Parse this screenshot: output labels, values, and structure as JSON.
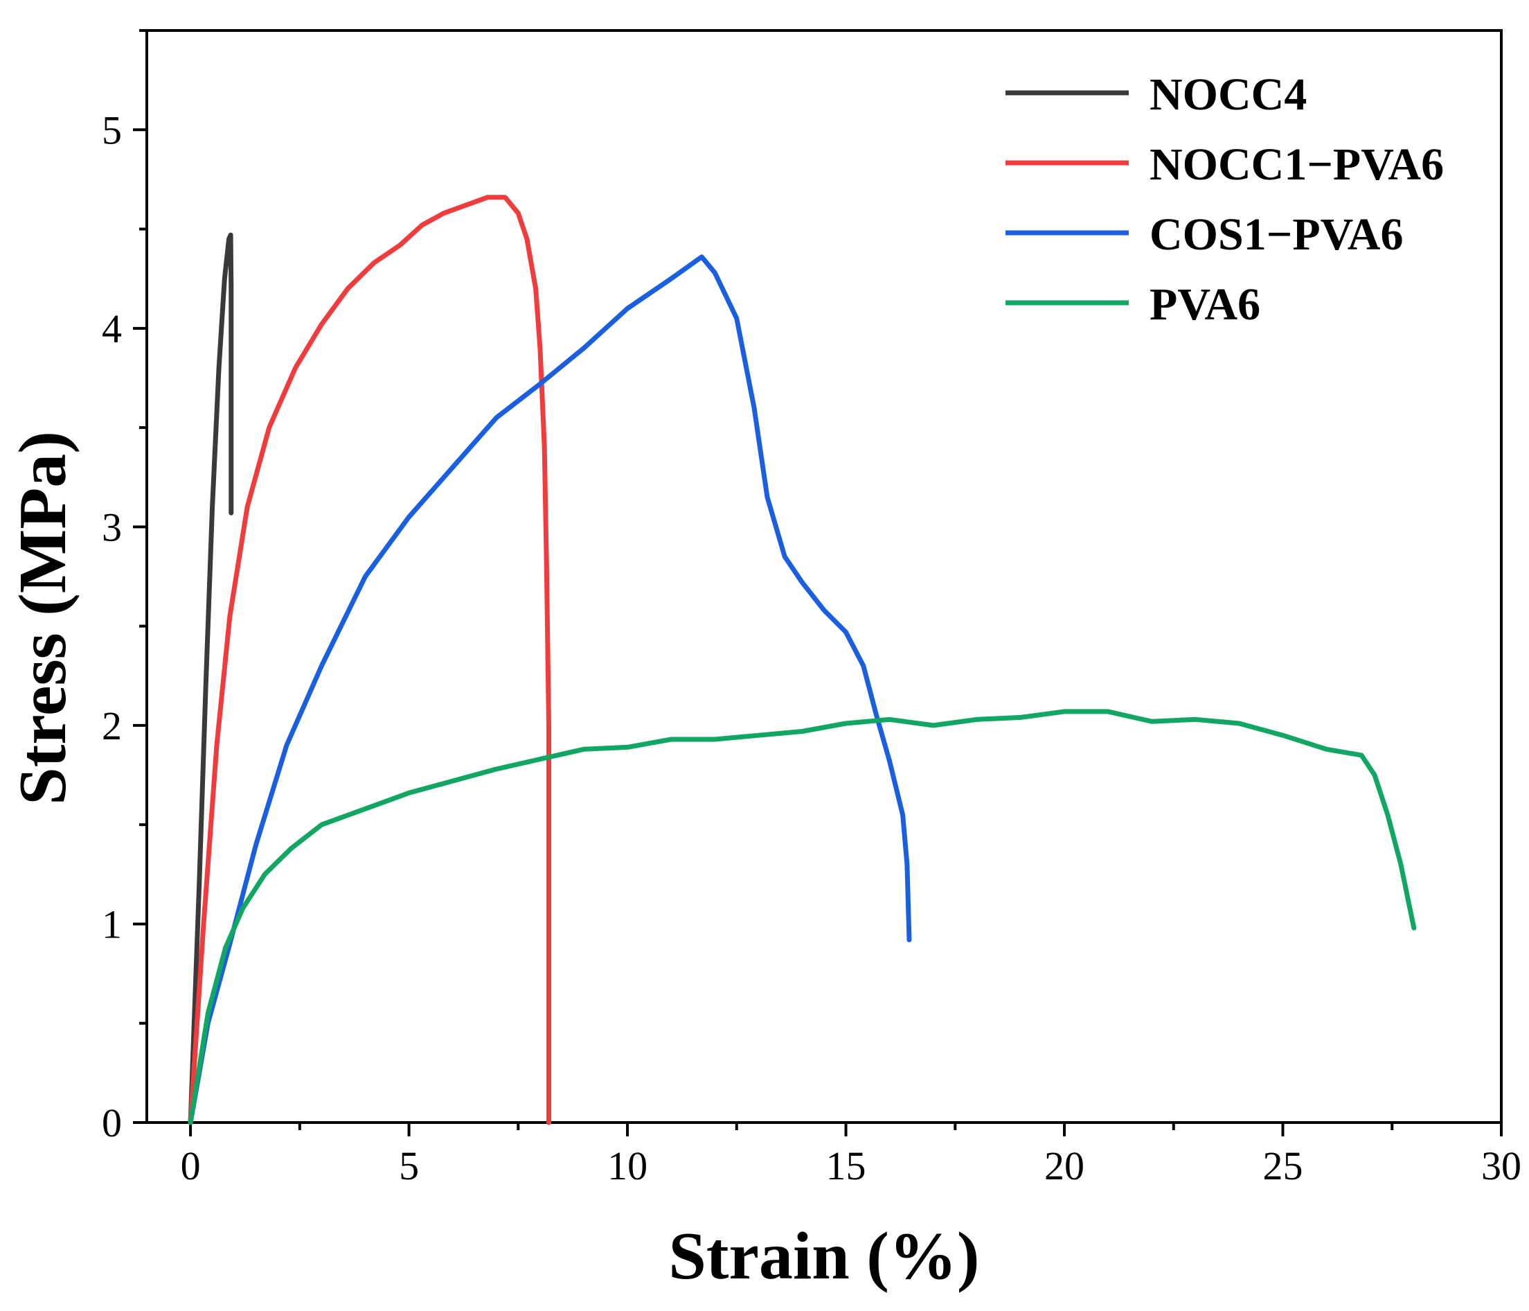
{
  "chart_data": {
    "type": "line",
    "xlabel": "Strain (%)",
    "ylabel": "Stress (MPa)",
    "xlim": [
      -1,
      30
    ],
    "ylim": [
      0,
      5.5
    ],
    "xticks": [
      0,
      5,
      10,
      15,
      20,
      25,
      30
    ],
    "yticks": [
      0,
      1,
      2,
      3,
      4,
      5
    ],
    "legend_position": "top-right",
    "grid": false,
    "series": [
      {
        "name": "NOCC4",
        "color": "#3a3a3a",
        "points": [
          [
            0,
            0
          ],
          [
            0.2,
            1.2
          ],
          [
            0.35,
            2.2
          ],
          [
            0.5,
            3.1
          ],
          [
            0.65,
            3.8
          ],
          [
            0.78,
            4.25
          ],
          [
            0.88,
            4.45
          ],
          [
            0.92,
            4.47
          ],
          [
            0.93,
            4.2
          ],
          [
            0.93,
            3.6
          ],
          [
            0.93,
            3.07
          ]
        ]
      },
      {
        "name": "NOCC1−PVA6",
        "color": "#f03c3c",
        "points": [
          [
            0,
            0
          ],
          [
            0.3,
            1.0
          ],
          [
            0.6,
            1.9
          ],
          [
            0.9,
            2.55
          ],
          [
            1.3,
            3.1
          ],
          [
            1.8,
            3.5
          ],
          [
            2.4,
            3.8
          ],
          [
            3.0,
            4.02
          ],
          [
            3.6,
            4.2
          ],
          [
            4.2,
            4.33
          ],
          [
            4.8,
            4.42
          ],
          [
            5.3,
            4.52
          ],
          [
            5.8,
            4.58
          ],
          [
            6.3,
            4.62
          ],
          [
            6.8,
            4.66
          ],
          [
            7.2,
            4.66
          ],
          [
            7.5,
            4.58
          ],
          [
            7.7,
            4.45
          ],
          [
            7.9,
            4.2
          ],
          [
            8.0,
            3.9
          ],
          [
            8.1,
            3.4
          ],
          [
            8.15,
            2.8
          ],
          [
            8.2,
            2.0
          ],
          [
            8.2,
            1.0
          ],
          [
            8.2,
            0
          ]
        ]
      },
      {
        "name": "COS1−PVA6",
        "color": "#1a5fe0",
        "points": [
          [
            0,
            0
          ],
          [
            0.4,
            0.5
          ],
          [
            0.9,
            0.9
          ],
          [
            1.5,
            1.4
          ],
          [
            2.2,
            1.9
          ],
          [
            3.0,
            2.3
          ],
          [
            4.0,
            2.75
          ],
          [
            5.0,
            3.05
          ],
          [
            6.0,
            3.3
          ],
          [
            7.0,
            3.55
          ],
          [
            8.0,
            3.72
          ],
          [
            9.0,
            3.9
          ],
          [
            10.0,
            4.1
          ],
          [
            11.0,
            4.25
          ],
          [
            11.7,
            4.36
          ],
          [
            12.0,
            4.28
          ],
          [
            12.5,
            4.05
          ],
          [
            12.9,
            3.6
          ],
          [
            13.2,
            3.15
          ],
          [
            13.6,
            2.85
          ],
          [
            14.0,
            2.72
          ],
          [
            14.5,
            2.58
          ],
          [
            15.0,
            2.47
          ],
          [
            15.4,
            2.3
          ],
          [
            15.7,
            2.05
          ],
          [
            16.0,
            1.82
          ],
          [
            16.3,
            1.55
          ],
          [
            16.4,
            1.3
          ],
          [
            16.45,
            0.92
          ]
        ]
      },
      {
        "name": "PVA6",
        "color": "#12a665",
        "points": [
          [
            0,
            0
          ],
          [
            0.4,
            0.55
          ],
          [
            0.8,
            0.88
          ],
          [
            1.2,
            1.08
          ],
          [
            1.7,
            1.25
          ],
          [
            2.3,
            1.38
          ],
          [
            3.0,
            1.5
          ],
          [
            4.0,
            1.58
          ],
          [
            5.0,
            1.66
          ],
          [
            6.0,
            1.72
          ],
          [
            7.0,
            1.78
          ],
          [
            8.0,
            1.83
          ],
          [
            9.0,
            1.88
          ],
          [
            10.0,
            1.89
          ],
          [
            11.0,
            1.93
          ],
          [
            12.0,
            1.93
          ],
          [
            13.0,
            1.95
          ],
          [
            14.0,
            1.97
          ],
          [
            15.0,
            2.01
          ],
          [
            16.0,
            2.03
          ],
          [
            17.0,
            2.0
          ],
          [
            18.0,
            2.03
          ],
          [
            19.0,
            2.04
          ],
          [
            20.0,
            2.07
          ],
          [
            21.0,
            2.07
          ],
          [
            22.0,
            2.02
          ],
          [
            23.0,
            2.03
          ],
          [
            24.0,
            2.01
          ],
          [
            25.0,
            1.95
          ],
          [
            26.0,
            1.88
          ],
          [
            26.8,
            1.85
          ],
          [
            27.1,
            1.75
          ],
          [
            27.4,
            1.55
          ],
          [
            27.7,
            1.3
          ],
          [
            28.0,
            0.98
          ]
        ]
      }
    ]
  }
}
